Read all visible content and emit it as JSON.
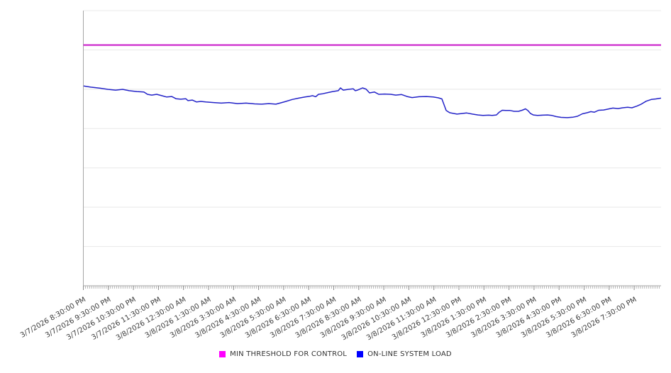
{
  "chart_data": {
    "type": "line",
    "title": "",
    "xlabel": "",
    "ylabel": "",
    "legend_position": "bottom-center",
    "grid": "horizontal",
    "x_axis": {
      "label_rotation_deg": -30,
      "minor_ticks_per_hour": 12,
      "tick_labels": [
        "3/7/2026 8:30:00 PM",
        "3/7/2026 9:30:00 PM",
        "3/7/2026 10:30:00 PM",
        "3/7/2026 11:30:00 PM",
        "3/8/2026 12:30:00 AM",
        "3/8/2026 1:30:00 AM",
        "3/8/2026 3:30:00 AM",
        "3/8/2026 4:30:00 AM",
        "3/8/2026 5:30:00 AM",
        "3/8/2026 6:30:00 AM",
        "3/8/2026 7:30:00 AM",
        "3/8/2026 8:30:00 AM",
        "3/8/2026 9:30:00 AM",
        "3/8/2026 10:30:00 AM",
        "3/8/2026 11:30:00 AM",
        "3/8/2026 12:30:00 PM",
        "3/8/2026 1:30:00 PM",
        "3/8/2026 2:30:00 PM",
        "3/8/2026 3:30:00 PM",
        "3/8/2026 4:30:00 PM",
        "3/8/2026 5:30:00 PM",
        "3/8/2026 6:30:00 PM",
        "3/8/2026 7:30:00 PM"
      ]
    },
    "y_axis": {
      "labels_visible": false,
      "range": [
        0,
        100
      ],
      "gridline_intervals": 7
    },
    "series": [
      {
        "name": "MIN THRESHOLD FOR CONTROL",
        "type": "threshold",
        "swatch_color": "#ff00ff",
        "line_color": "#c711c7",
        "value": 87.5
      },
      {
        "name": "ON-LINE SYSTEM LOAD",
        "type": "line",
        "swatch_color": "#0000ff",
        "line_color": "#2323c8",
        "points": [
          [
            0.01,
            72.6
          ],
          [
            0.3,
            72.2
          ],
          [
            0.67,
            71.8
          ],
          [
            0.98,
            71.4
          ],
          [
            1.29,
            71.1
          ],
          [
            1.57,
            71.4
          ],
          [
            1.83,
            70.9
          ],
          [
            2.14,
            70.6
          ],
          [
            2.42,
            70.4
          ],
          [
            2.56,
            69.6
          ],
          [
            2.73,
            69.3
          ],
          [
            2.93,
            69.6
          ],
          [
            3.13,
            69.1
          ],
          [
            3.33,
            68.6
          ],
          [
            3.53,
            68.8
          ],
          [
            3.7,
            68.0
          ],
          [
            3.89,
            67.8
          ],
          [
            4.09,
            68.0
          ],
          [
            4.18,
            67.3
          ],
          [
            4.35,
            67.5
          ],
          [
            4.52,
            66.8
          ],
          [
            4.69,
            67.0
          ],
          [
            4.89,
            66.8
          ],
          [
            5.2,
            66.6
          ],
          [
            5.51,
            66.4
          ],
          [
            5.82,
            66.6
          ],
          [
            6.16,
            66.2
          ],
          [
            6.5,
            66.4
          ],
          [
            6.84,
            66.1
          ],
          [
            7.12,
            66.0
          ],
          [
            7.41,
            66.2
          ],
          [
            7.69,
            66.0
          ],
          [
            7.89,
            66.5
          ],
          [
            8.09,
            67.0
          ],
          [
            8.34,
            67.7
          ],
          [
            8.6,
            68.2
          ],
          [
            8.85,
            68.6
          ],
          [
            9.05,
            68.9
          ],
          [
            9.16,
            69.1
          ],
          [
            9.28,
            68.7
          ],
          [
            9.39,
            69.6
          ],
          [
            9.56,
            69.8
          ],
          [
            9.76,
            70.2
          ],
          [
            9.96,
            70.6
          ],
          [
            10.18,
            70.9
          ],
          [
            10.27,
            71.9
          ],
          [
            10.38,
            71.1
          ],
          [
            10.58,
            71.4
          ],
          [
            10.78,
            71.6
          ],
          [
            10.86,
            70.9
          ],
          [
            10.95,
            71.1
          ],
          [
            11.15,
            71.9
          ],
          [
            11.29,
            71.5
          ],
          [
            11.43,
            70.1
          ],
          [
            11.63,
            70.4
          ],
          [
            11.8,
            69.6
          ],
          [
            12.03,
            69.7
          ],
          [
            12.28,
            69.6
          ],
          [
            12.48,
            69.3
          ],
          [
            12.71,
            69.5
          ],
          [
            12.93,
            68.8
          ],
          [
            13.13,
            68.4
          ],
          [
            13.41,
            68.7
          ],
          [
            13.7,
            68.8
          ],
          [
            13.98,
            68.6
          ],
          [
            14.18,
            68.3
          ],
          [
            14.32,
            67.9
          ],
          [
            14.41,
            65.7
          ],
          [
            14.49,
            63.7
          ],
          [
            14.63,
            62.9
          ],
          [
            14.92,
            62.4
          ],
          [
            15.11,
            62.6
          ],
          [
            15.31,
            62.8
          ],
          [
            15.54,
            62.4
          ],
          [
            15.76,
            62.1
          ],
          [
            15.96,
            61.9
          ],
          [
            16.19,
            62.0
          ],
          [
            16.33,
            61.9
          ],
          [
            16.5,
            62.1
          ],
          [
            16.61,
            63.1
          ],
          [
            16.73,
            63.8
          ],
          [
            16.87,
            63.7
          ],
          [
            17.04,
            63.7
          ],
          [
            17.21,
            63.4
          ],
          [
            17.38,
            63.4
          ],
          [
            17.52,
            63.8
          ],
          [
            17.66,
            64.3
          ],
          [
            17.75,
            63.7
          ],
          [
            17.86,
            62.6
          ],
          [
            17.97,
            62.1
          ],
          [
            18.14,
            61.9
          ],
          [
            18.34,
            62.0
          ],
          [
            18.54,
            62.1
          ],
          [
            18.71,
            61.9
          ],
          [
            18.88,
            61.5
          ],
          [
            19.08,
            61.2
          ],
          [
            19.33,
            61.1
          ],
          [
            19.56,
            61.3
          ],
          [
            19.73,
            61.6
          ],
          [
            19.93,
            62.5
          ],
          [
            20.13,
            62.9
          ],
          [
            20.27,
            63.3
          ],
          [
            20.41,
            63.1
          ],
          [
            20.58,
            63.8
          ],
          [
            20.78,
            63.9
          ],
          [
            20.95,
            64.2
          ],
          [
            21.15,
            64.6
          ],
          [
            21.35,
            64.4
          ],
          [
            21.54,
            64.7
          ],
          [
            21.74,
            64.9
          ],
          [
            21.91,
            64.7
          ],
          [
            22.11,
            65.3
          ],
          [
            22.28,
            66.0
          ],
          [
            22.48,
            67.1
          ],
          [
            22.68,
            67.7
          ],
          [
            22.87,
            67.9
          ],
          [
            23.07,
            68.2
          ]
        ]
      }
    ],
    "colors": {
      "gridline": "#e8e8e8",
      "axis_line": "#a6a6a6",
      "minor_tick": "#b3b3b3",
      "hour_tick": "#8a8a8a",
      "tick_label_text": "#3d3d3d",
      "background": "#ffffff"
    }
  }
}
